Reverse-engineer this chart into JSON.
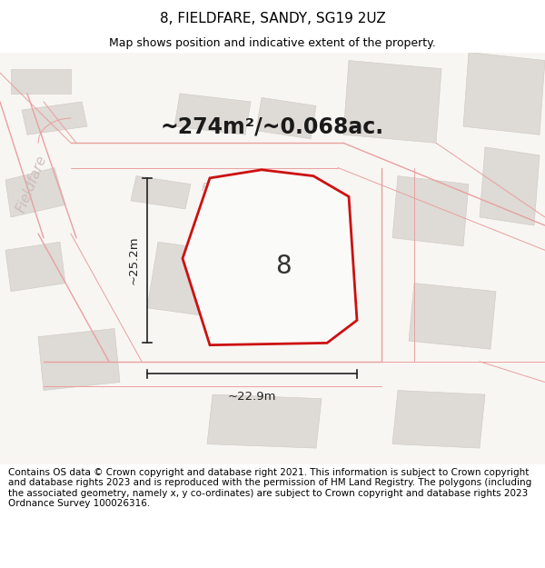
{
  "title": "8, FIELDFARE, SANDY, SG19 2UZ",
  "subtitle": "Map shows position and indicative extent of the property.",
  "area_text": "~274m²/~0.068ac.",
  "dim_vertical": "~25.2m",
  "dim_horizontal": "~22.9m",
  "plot_label": "8",
  "footer": "Contains OS data © Crown copyright and database right 2021. This information is subject to Crown copyright and database rights 2023 and is reproduced with the permission of HM Land Registry. The polygons (including the associated geometry, namely x, y co-ordinates) are subject to Crown copyright and database rights 2023 Ordnance Survey 100026316.",
  "bg_color": "#ffffff",
  "map_bg": "#f5f3f0",
  "plot_fill": "#f5f3f0",
  "plot_stroke": "#cc1111",
  "road_line": "#e8a0a0",
  "road_line2": "#d48888",
  "building_fill": "#dedad5",
  "building_edge": "#ccc8c2",
  "fieldfare_text_color": "#c8b8b8",
  "dim_color": "#222222",
  "area_fontsize": 17,
  "title_fontsize": 11,
  "subtitle_fontsize": 9,
  "footer_fontsize": 7.5,
  "plot_label_fontsize": 20,
  "dim_fontsize": 9.5,
  "fieldfare_road_fontsize": 11,
  "fieldfare_horiz_fontsize": 9
}
